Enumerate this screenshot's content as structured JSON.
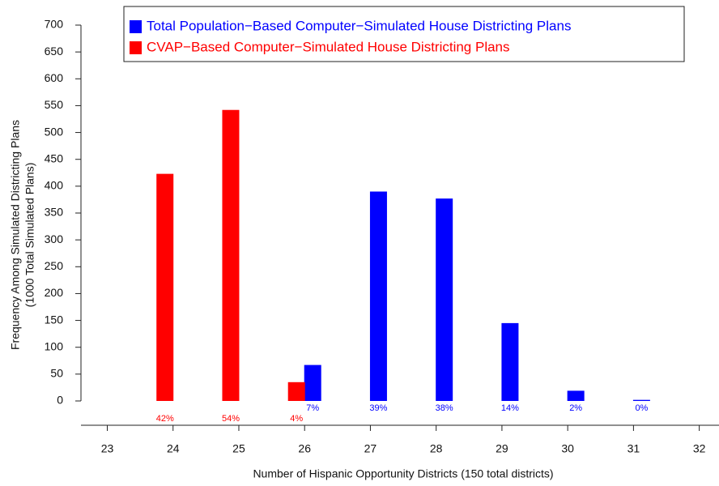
{
  "chart_data": {
    "type": "bar",
    "xlabel": "Number of Hispanic Opportunity Districts (150 total districts)",
    "ylabel": [
      "Frequency Among Simulated Districting Plans",
      "(1000 Total Simulated Plans)"
    ],
    "xlim": [
      22.6,
      32.3
    ],
    "xticks": [
      23,
      24,
      25,
      26,
      27,
      28,
      29,
      30,
      31,
      32
    ],
    "ylim": [
      0,
      700
    ],
    "yticks": [
      0,
      50,
      100,
      150,
      200,
      250,
      300,
      350,
      400,
      450,
      500,
      550,
      600,
      650,
      700
    ],
    "series": [
      {
        "name": "Total Population−Based Computer−Simulated House Districting Plans",
        "color": "#0000ff",
        "x": [
          26,
          27,
          28,
          29,
          30,
          31
        ],
        "values": [
          67,
          390,
          377,
          145,
          19,
          2
        ],
        "value_labels": [
          "7%",
          "39%",
          "38%",
          "14%",
          "2%",
          "0%"
        ]
      },
      {
        "name": "CVAP−Based Computer−Simulated House Districting Plans",
        "color": "#ff0000",
        "x": [
          24,
          25,
          26
        ],
        "values": [
          423,
          542,
          35
        ],
        "value_labels": [
          "42%",
          "54%",
          "4%"
        ]
      }
    ]
  }
}
